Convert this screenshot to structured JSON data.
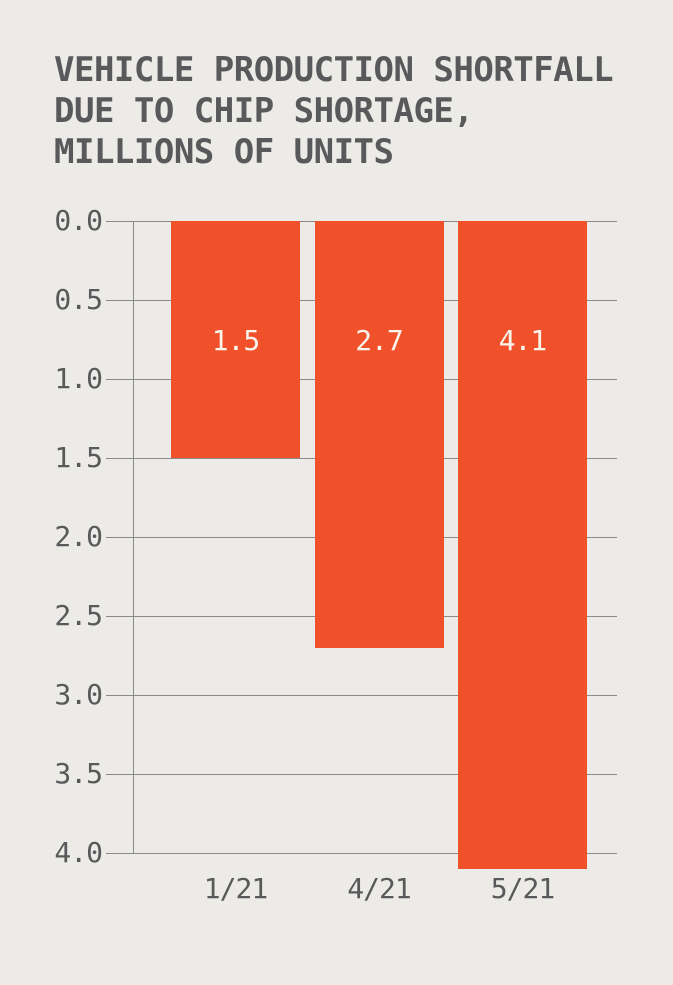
{
  "title": {
    "lines": [
      "VEHICLE PRODUCTION SHORTFALL",
      "DUE TO CHIP SHORTAGE,",
      "MILLIONS OF UNITS"
    ]
  },
  "chart_data": {
    "type": "bar",
    "orientation": "vertical-downward",
    "title": "VEHICLE PRODUCTION SHORTFALL DUE TO CHIP SHORTAGE, MILLIONS OF UNITS",
    "categories": [
      "1/21",
      "4/21",
      "5/21"
    ],
    "values": [
      1.5,
      2.7,
      4.1
    ],
    "bar_labels": [
      "1.5",
      "2.7",
      "4.1"
    ],
    "xlabel": "",
    "ylabel": "",
    "y_axis": {
      "min": 0.0,
      "max": 4.0,
      "tick_step": 0.5,
      "ticks": [
        "0.0",
        "0.5",
        "1.0",
        "1.5",
        "2.0",
        "2.5",
        "3.0",
        "3.5",
        "4.0"
      ],
      "direction": "inverted"
    },
    "grid": true,
    "legend": false,
    "colors": {
      "bar": "#F0502A",
      "background": "#ECEBE7",
      "text": "#58595B",
      "grid": "#8A8A8A",
      "bar_label": "#FAF5EC"
    }
  }
}
